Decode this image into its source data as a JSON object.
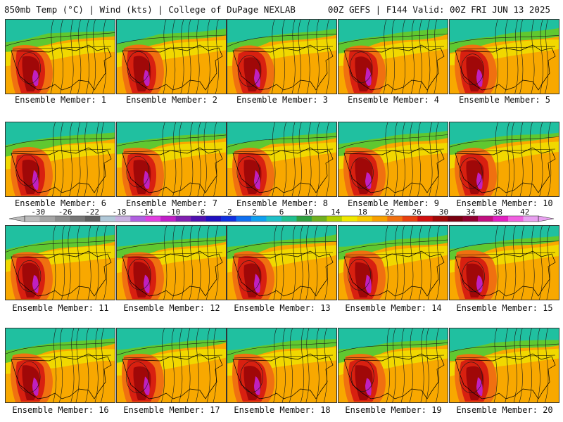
{
  "header": {
    "left": "850mb Temp (°C) | Wind (kts) | College of DuPage NEXLAB",
    "right": "00Z GEFS | F144 Valid: 00Z FRI JUN 13 2025"
  },
  "member_label_prefix": "Ensemble Member: ",
  "members": [
    "1",
    "2",
    "3",
    "4",
    "5",
    "6",
    "7",
    "8",
    "9",
    "10",
    "11",
    "12",
    "13",
    "14",
    "15",
    "16",
    "17",
    "18",
    "19",
    "20"
  ],
  "colorbar": {
    "tick_labels": [
      "-30",
      "-26",
      "-22",
      "-18",
      "-14",
      "-10",
      "-6",
      "-2",
      "2",
      "6",
      "10",
      "14",
      "18",
      "22",
      "26",
      "30",
      "34",
      "38",
      "42"
    ],
    "colors": [
      "#bcbcbc",
      "#a5a5a5",
      "#8d8d8d",
      "#767676",
      "#5f5f5f",
      "#b0c8d8",
      "#c8b0e0",
      "#b060e0",
      "#e040e0",
      "#c020c8",
      "#8020b0",
      "#5010b0",
      "#2010c0",
      "#1030e0",
      "#1070f0",
      "#10a0f0",
      "#20c0c8",
      "#20c090",
      "#30a040",
      "#70b020",
      "#b0d000",
      "#f0e800",
      "#f8c800",
      "#f8a000",
      "#f07010",
      "#e84010",
      "#d01010",
      "#a00808",
      "#780010",
      "#900030",
      "#c01080",
      "#e020c0",
      "#f060e0",
      "#e8a0f0"
    ]
  },
  "map_colors": {
    "north": "#20c0a0",
    "north2": "#60c830",
    "mid": "#f0e000",
    "warm": "#f8a800",
    "hot": "#f07010",
    "hotter": "#d82010",
    "core": "#a00808",
    "max": "#c020c0",
    "ocean_w": "#f0a020"
  }
}
